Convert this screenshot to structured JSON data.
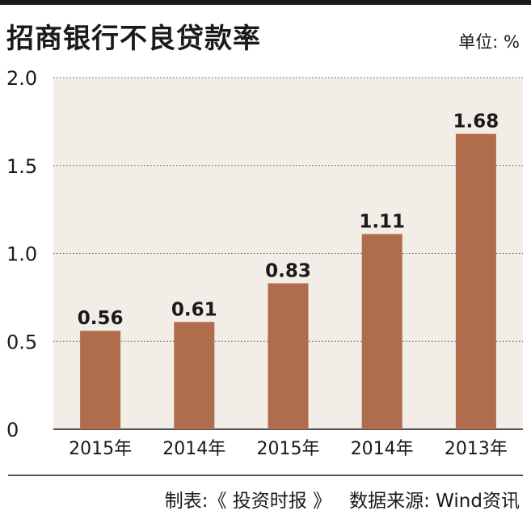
{
  "header": {
    "title": "招商银行不良贷款率",
    "unit": "单位: %"
  },
  "footer": {
    "credit_maker": "制表:《 投资时报 》",
    "credit_source": "数据来源: Wind资讯"
  },
  "colors": {
    "bar": "#B06D4B",
    "plot_background": "#F2EDE7",
    "gridline": "#555555",
    "text": "#1a1a1a"
  },
  "chart_data": {
    "type": "bar",
    "title": "招商银行不良贷款率",
    "categories": [
      "2015年",
      "2014年",
      "2015年",
      "2014年",
      "2013年"
    ],
    "values": [
      0.56,
      0.61,
      0.83,
      1.11,
      1.68
    ],
    "data_labels": [
      "0.56",
      "0.61",
      "0.83",
      "1.11",
      "1.68"
    ],
    "y_ticks": [
      "0",
      "0.5",
      "1.0",
      "1.5",
      "2.0"
    ],
    "ylim": [
      0,
      2.0
    ],
    "xlabel": "",
    "ylabel": "",
    "grid": true,
    "legend": "none"
  }
}
